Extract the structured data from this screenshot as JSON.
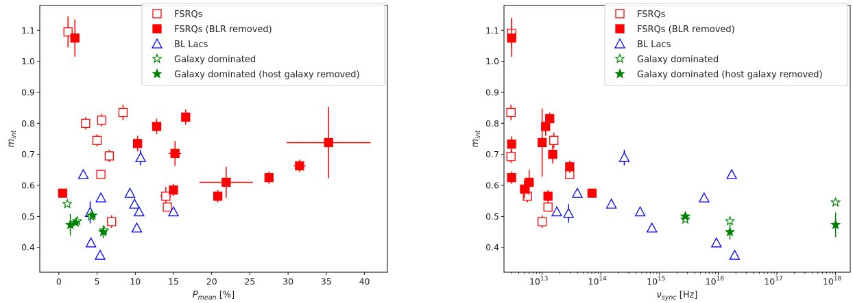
{
  "legend_entries": [
    {
      "label": "FSRQs",
      "marker": "square-open",
      "color": "#ff0000"
    },
    {
      "label": "FSRQs (BLR removed)",
      "marker": "square-filled",
      "color": "#ff0000"
    },
    {
      "label": "BL Lacs",
      "marker": "triangle-open",
      "color": "#0000ff"
    },
    {
      "label": "Galaxy dominated",
      "marker": "star-open",
      "color": "#008000"
    },
    {
      "label": "Galaxy dominated (host galaxy removed)",
      "marker": "star-filled",
      "color": "#008000"
    }
  ],
  "chart_data": [
    {
      "type": "scatter",
      "xlabel": "P_mean [%]",
      "xlabel_main": "P",
      "xlabel_sub": "mean",
      "xlabel_unit": " [%]",
      "ylabel_main": "m",
      "ylabel_sub": "int",
      "xscale": "linear",
      "xlim": [
        -2.5,
        43
      ],
      "ylim": [
        0.32,
        1.18
      ],
      "xticks": [
        0,
        5,
        10,
        15,
        20,
        25,
        30,
        35,
        40
      ],
      "xtick_labels": [
        "0",
        "5",
        "10",
        "15",
        "20",
        "25",
        "30",
        "35",
        "40"
      ],
      "yticks": [
        0.4,
        0.5,
        0.6,
        0.7,
        0.8,
        0.9,
        1.0,
        1.1
      ],
      "ytick_labels": [
        "0.4",
        "0.5",
        "0.6",
        "0.7",
        "0.8",
        "0.9",
        "1.0",
        "1.1"
      ],
      "legend_position": "top-right",
      "grid": false,
      "series": [
        {
          "name": "FSRQs",
          "marker": "square-open",
          "color": "#ff0000",
          "points": [
            [
              1.2,
              1.095,
              0,
              0.05
            ],
            [
              3.5,
              0.8,
              0,
              0.02
            ],
            [
              5.0,
              0.745,
              0,
              0.02
            ],
            [
              5.6,
              0.81,
              0,
              0.02
            ],
            [
              5.5,
              0.635,
              0,
              0
            ],
            [
              6.6,
              0.695,
              0,
              0.02
            ],
            [
              8.4,
              0.835,
              0,
              0.025
            ],
            [
              14.0,
              0.565,
              0.7,
              0.03
            ],
            [
              14.2,
              0.53,
              0,
              0
            ],
            [
              6.9,
              0.483,
              0,
              0.02
            ]
          ]
        },
        {
          "name": "FSRQs (BLR removed)",
          "marker": "square-filled",
          "color": "#ff0000",
          "points": [
            [
              0.5,
              0.575,
              0,
              0
            ],
            [
              2.1,
              1.075,
              0,
              0.06
            ],
            [
              10.3,
              0.735,
              0,
              0.025
            ],
            [
              12.8,
              0.79,
              0,
              0.025
            ],
            [
              15.0,
              0.585,
              0,
              0.02
            ],
            [
              15.2,
              0.703,
              0.8,
              0.04
            ],
            [
              16.6,
              0.82,
              0,
              0.025
            ],
            [
              20.8,
              0.565,
              0.5,
              0.02
            ],
            [
              21.9,
              0.61,
              3.5,
              0.05
            ],
            [
              27.5,
              0.625,
              0,
              0.02
            ],
            [
              31.5,
              0.663,
              0.8,
              0.02
            ],
            [
              35.3,
              0.738,
              5.5,
              0.115
            ]
          ]
        },
        {
          "name": "BL Lacs",
          "marker": "triangle-open",
          "color": "#0000ff",
          "points": [
            [
              3.2,
              0.635,
              0,
              0
            ],
            [
              4.1,
              0.513,
              0,
              0.035
            ],
            [
              4.2,
              0.415,
              0,
              0
            ],
            [
              5.4,
              0.375,
              0,
              0
            ],
            [
              5.5,
              0.56,
              0,
              0
            ],
            [
              9.3,
              0.575,
              0,
              0
            ],
            [
              9.9,
              0.54,
              0,
              0
            ],
            [
              10.2,
              0.463,
              0,
              0
            ],
            [
              10.5,
              0.515,
              0,
              0
            ],
            [
              10.7,
              0.69,
              0,
              0.025
            ],
            [
              15.0,
              0.515,
              0,
              0
            ]
          ]
        },
        {
          "name": "Galaxy dominated",
          "marker": "star-open",
          "color": "#008000",
          "points": [
            [
              1.1,
              0.54,
              0,
              0
            ],
            [
              2.4,
              0.485,
              0,
              0
            ],
            [
              4.2,
              0.5,
              0,
              0
            ],
            [
              5.9,
              0.455,
              0,
              0
            ]
          ]
        },
        {
          "name": "Galaxy dominated (host galaxy removed)",
          "marker": "star-filled",
          "color": "#008000",
          "points": [
            [
              1.5,
              0.473,
              0,
              0.035
            ],
            [
              4.4,
              0.503,
              0,
              0
            ],
            [
              5.8,
              0.45,
              0,
              0.02
            ],
            [
              2.2,
              0.48,
              0,
              0
            ]
          ]
        }
      ]
    },
    {
      "type": "scatter",
      "xlabel": "ν_sync [Hz]",
      "xlabel_main": "ν",
      "xlabel_sub": "sync",
      "xlabel_unit": " [Hz]",
      "ylabel_main": "m",
      "ylabel_sub": "int",
      "xscale": "log",
      "xlim": [
        12.35,
        18.25
      ],
      "ylim": [
        0.32,
        1.18
      ],
      "xticks": [
        13,
        14,
        15,
        16,
        17,
        18
      ],
      "xtick_labels": [
        "10",
        "10",
        "10",
        "10",
        "10",
        "10"
      ],
      "xtick_exponents": [
        "13",
        "14",
        "15",
        "16",
        "17",
        "18"
      ],
      "yticks": [
        0.4,
        0.5,
        0.6,
        0.7,
        0.8,
        0.9,
        1.0,
        1.1
      ],
      "ytick_labels": [
        "0.4",
        "0.5",
        "0.6",
        "0.7",
        "0.8",
        "0.9",
        "1.0",
        "1.1"
      ],
      "legend_position": "top-right",
      "grid": false,
      "series": [
        {
          "name": "FSRQs",
          "marker": "square-open",
          "color": "#ff0000",
          "points": [
            [
              12.48,
              1.09,
              0,
              0.05
            ],
            [
              12.47,
              0.835,
              0,
              0.025
            ],
            [
              12.47,
              0.693,
              0,
              0.02
            ],
            [
              12.75,
              0.565,
              0,
              0.02
            ],
            [
              13.0,
              0.483,
              0,
              0.02
            ],
            [
              13.1,
              0.53,
              0,
              0
            ],
            [
              13.2,
              0.745,
              0,
              0.025
            ],
            [
              13.47,
              0.635,
              0,
              0
            ]
          ]
        },
        {
          "name": "FSRQs (BLR removed)",
          "marker": "square-filled",
          "color": "#ff0000",
          "points": [
            [
              12.48,
              1.075,
              0,
              0.06
            ],
            [
              12.48,
              0.733,
              0,
              0.025
            ],
            [
              12.48,
              0.625,
              0,
              0.02
            ],
            [
              12.7,
              0.588,
              0,
              0.03
            ],
            [
              12.78,
              0.61,
              0,
              0.04
            ],
            [
              13.0,
              0.738,
              0,
              0.11
            ],
            [
              13.06,
              0.79,
              0,
              0.03
            ],
            [
              13.1,
              0.565,
              0,
              0.02
            ],
            [
              13.13,
              0.815,
              0,
              0.02
            ],
            [
              13.18,
              0.7,
              0,
              0.03
            ],
            [
              13.47,
              0.66,
              0,
              0.02
            ],
            [
              13.85,
              0.575,
              0,
              0
            ]
          ]
        },
        {
          "name": "BL Lacs",
          "marker": "triangle-open",
          "color": "#0000ff",
          "points": [
            [
              13.25,
              0.515,
              0,
              0
            ],
            [
              13.45,
              0.51,
              0,
              0.03
            ],
            [
              13.6,
              0.575,
              0,
              0
            ],
            [
              14.18,
              0.54,
              0,
              0
            ],
            [
              14.4,
              0.69,
              0,
              0.025
            ],
            [
              14.67,
              0.515,
              0,
              0
            ],
            [
              14.87,
              0.463,
              0,
              0
            ],
            [
              15.76,
              0.56,
              0,
              0
            ],
            [
              15.97,
              0.415,
              0,
              0
            ],
            [
              16.23,
              0.635,
              0,
              0
            ],
            [
              16.28,
              0.375,
              0,
              0
            ]
          ]
        },
        {
          "name": "Galaxy dominated",
          "marker": "star-open",
          "color": "#008000",
          "points": [
            [
              15.44,
              0.49,
              0,
              0
            ],
            [
              16.2,
              0.485,
              0,
              0
            ],
            [
              18.0,
              0.545,
              0,
              0
            ]
          ]
        },
        {
          "name": "Galaxy dominated (host galaxy removed)",
          "marker": "star-filled",
          "color": "#008000",
          "points": [
            [
              15.44,
              0.5,
              0,
              0
            ],
            [
              16.2,
              0.45,
              0,
              0.025
            ],
            [
              18.0,
              0.473,
              0,
              0.04
            ]
          ]
        }
      ]
    }
  ]
}
